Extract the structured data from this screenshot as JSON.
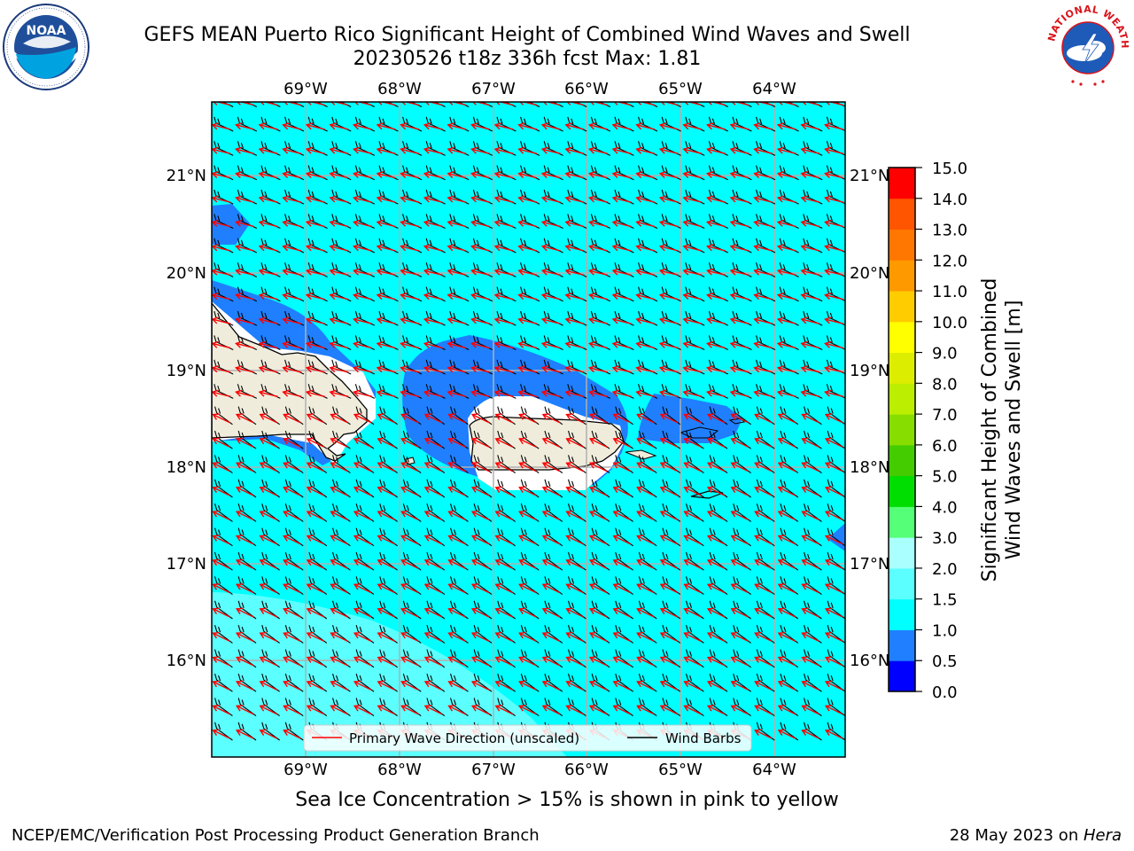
{
  "header": {
    "title_line1": "GEFS MEAN Puerto Rico Significant Height of Combined Wind Waves and Swell",
    "title_line2": "20230526 t18z 336h fcst   Max: 1.81"
  },
  "logos": {
    "left": {
      "name": "noaa-logo",
      "text": "NOAA",
      "ring_text": "NATIONAL OCEANIC AND ATMOSPHERIC ADMINISTRATION · U.S. DEPARTMENT OF COMMERCE"
    },
    "right": {
      "name": "nws-logo",
      "ring_text": "NATIONAL WEATHER SERVICE"
    }
  },
  "map": {
    "lon_labels": [
      "69°W",
      "68°W",
      "67°W",
      "66°W",
      "65°W",
      "64°W"
    ],
    "lat_labels": [
      "21°N",
      "20°N",
      "19°N",
      "18°N",
      "17°N",
      "16°N"
    ],
    "legend": {
      "wave_label": "Primary Wave Direction (unscaled)",
      "barb_label": "Wind Barbs",
      "wave_color": "#ff0000",
      "barb_color": "#000000"
    },
    "colors": {
      "ocean": "#00ffff",
      "land": "#efecdc",
      "band_0_5_1_0": "#1f7fff",
      "band_2_0_2_5": "#5cffff"
    }
  },
  "colorbar": {
    "label_line1": "Significant Height of Combined",
    "label_line2": "Wind Waves and Swell [m]",
    "ticks": [
      "0.0",
      "0.5",
      "1.0",
      "1.5",
      "2.0",
      "3.0",
      "4.0",
      "5.0",
      "6.0",
      "7.0",
      "8.0",
      "9.0",
      "10.0",
      "11.0",
      "12.0",
      "13.0",
      "14.0",
      "15.0"
    ],
    "colors": [
      "#0000ff",
      "#1f7fff",
      "#00ffff",
      "#5cffff",
      "#aaffff",
      "#55ff77",
      "#00dd00",
      "#44cc00",
      "#88dd00",
      "#bbee00",
      "#dded00",
      "#ffff00",
      "#ffcc00",
      "#ff9900",
      "#ff7700",
      "#ff5500",
      "#ff0000"
    ]
  },
  "subtitle": "Sea Ice Concentration > 15% is shown in pink to yellow",
  "footer": {
    "left": "NCEP/EMC/Verification Post Processing Product Generation Branch",
    "right_date": "28 May 2023 on ",
    "right_host": "Hera"
  }
}
